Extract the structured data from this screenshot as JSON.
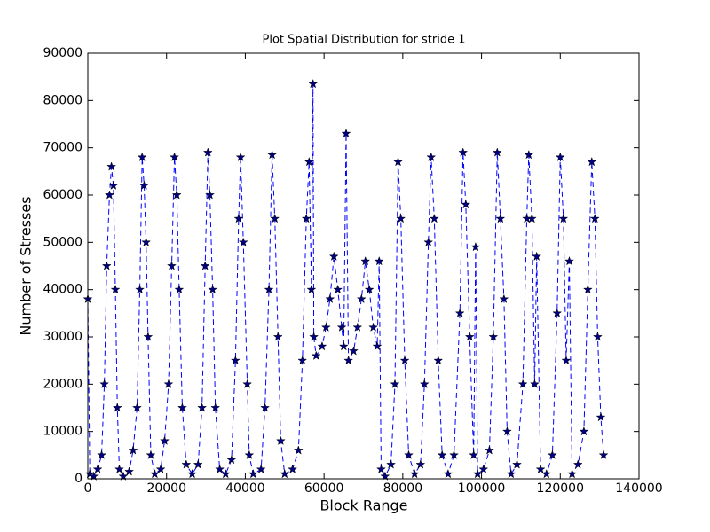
{
  "chart_data": {
    "type": "line",
    "title": "Plot Spatial Distribution for stride 1",
    "x_label": "Block Range",
    "y_label": "Number of Stresses",
    "xlim": [
      0,
      140000
    ],
    "ylim": [
      0,
      90000
    ],
    "xticks": [
      0,
      20000,
      40000,
      60000,
      80000,
      100000,
      120000,
      140000
    ],
    "yticks": [
      0,
      10000,
      20000,
      30000,
      40000,
      50000,
      60000,
      70000,
      80000,
      90000
    ],
    "marker": "star",
    "linestyle": "dashed",
    "x": [
      0,
      500,
      1500,
      2500,
      3500,
      4200,
      4800,
      5500,
      6000,
      6500,
      7000,
      7500,
      8000,
      9000,
      10500,
      11500,
      12500,
      13200,
      13800,
      14300,
      14800,
      15300,
      16000,
      17000,
      18500,
      19500,
      20500,
      21300,
      22000,
      22600,
      23200,
      24000,
      25000,
      26500,
      28000,
      29000,
      29800,
      30500,
      31000,
      31700,
      32400,
      33500,
      35000,
      36500,
      37500,
      38300,
      38800,
      39500,
      40500,
      41000,
      42000,
      44000,
      45000,
      46000,
      46800,
      47500,
      48300,
      49000,
      50000,
      52000,
      53500,
      54500,
      55500,
      56200,
      56800,
      57200,
      57400,
      58000,
      59500,
      60500,
      61500,
      62500,
      63500,
      64500,
      65000,
      65600,
      66200,
      67500,
      68500,
      69500,
      70500,
      71500,
      72500,
      73500,
      74000,
      74500,
      75500,
      77000,
      78000,
      78800,
      79500,
      80500,
      81500,
      83000,
      84500,
      85500,
      86500,
      87200,
      88000,
      89000,
      90000,
      91500,
      93000,
      94500,
      95300,
      96000,
      97000,
      98000,
      98500,
      99000,
      100500,
      102000,
      103000,
      104000,
      104800,
      105700,
      106500,
      107500,
      109000,
      110500,
      111500,
      112000,
      112800,
      113500,
      114000,
      115000,
      116500,
      118000,
      119200,
      120000,
      120800,
      121500,
      122300,
      123000,
      124500,
      126000,
      127000,
      128000,
      128800,
      129500,
      130300,
      131000
    ],
    "series": [
      {
        "name": "stresses",
        "color": "#0000ff",
        "marker_color": "#000080",
        "values": [
          38000,
          1000,
          500,
          2000,
          5000,
          20000,
          45000,
          60000,
          66000,
          62000,
          40000,
          15000,
          2000,
          500,
          1500,
          6000,
          15000,
          40000,
          68000,
          62000,
          50000,
          30000,
          5000,
          1000,
          2000,
          8000,
          20000,
          45000,
          68000,
          60000,
          40000,
          15000,
          3000,
          1000,
          3000,
          15000,
          45000,
          69000,
          60000,
          40000,
          15000,
          2000,
          1000,
          4000,
          25000,
          55000,
          68000,
          50000,
          20000,
          5000,
          1000,
          2000,
          15000,
          40000,
          68500,
          55000,
          30000,
          8000,
          1000,
          2000,
          6000,
          25000,
          55000,
          67000,
          40000,
          83500,
          30000,
          26000,
          28000,
          32000,
          38000,
          47000,
          40000,
          32000,
          28000,
          73000,
          25000,
          27000,
          32000,
          38000,
          46000,
          40000,
          32000,
          28000,
          46000,
          2000,
          500,
          3000,
          20000,
          67000,
          55000,
          25000,
          5000,
          1000,
          3000,
          20000,
          50000,
          68000,
          55000,
          25000,
          5000,
          1000,
          5000,
          35000,
          69000,
          58000,
          30000,
          5000,
          49000,
          1000,
          2000,
          6000,
          30000,
          69000,
          55000,
          38000,
          10000,
          1000,
          3000,
          20000,
          55000,
          68500,
          55000,
          20000,
          47000,
          2000,
          1000,
          5000,
          35000,
          68000,
          55000,
          25000,
          46000,
          1000,
          3000,
          10000,
          40000,
          67000,
          55000,
          30000,
          13000,
          5000
        ]
      }
    ]
  }
}
